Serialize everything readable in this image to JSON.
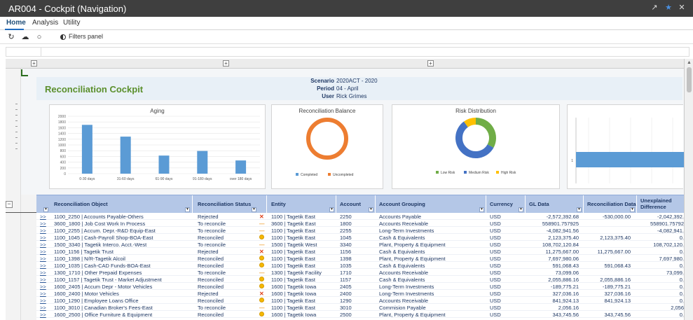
{
  "window": {
    "title": "AR004 - Cockpit (Navigation)"
  },
  "ribbon": {
    "tabs": [
      "Home",
      "Analysis",
      "Utility"
    ],
    "active_tab": "Home"
  },
  "toolbar": {
    "filters_label": "Filters panel"
  },
  "dashboard": {
    "title": "Reconciliation Cockpit",
    "meta": {
      "scenario_label": "Scenario",
      "scenario_value": "2020ACT - 2020",
      "period_label": "Period",
      "period_value": "04 - April",
      "user_label": "User",
      "user_value": "Rick Grimes"
    }
  },
  "chart_data": [
    {
      "type": "bar",
      "title": "Aging",
      "categories": [
        "0-30 days",
        "31-60 days",
        "61-90 days",
        "91-180 days",
        "over 180 days"
      ],
      "values": [
        1700,
        1290,
        630,
        790,
        460
      ],
      "ylim": [
        0,
        2000
      ],
      "yticks": [
        "0",
        "200",
        "400",
        "600",
        "800",
        "1000",
        "1200",
        "1400",
        "1600",
        "1800",
        "2000"
      ],
      "color": "#5b9bd5"
    },
    {
      "type": "pie",
      "title": "Reconciliation Balance",
      "labels": [
        "Completed",
        "Uncompleted"
      ],
      "values": [
        0,
        100
      ],
      "colors": [
        "#5b9bd5",
        "#ed7d31"
      ]
    },
    {
      "type": "pie",
      "title": "Risk Distribution",
      "labels": [
        "Low Risk",
        "Medium Risk",
        "High Risk"
      ],
      "values": [
        33,
        57,
        10
      ],
      "colors": [
        "#70ad47",
        "#4472c4",
        "#ffc000"
      ]
    },
    {
      "type": "bar",
      "title": "",
      "categories": [
        "1"
      ],
      "values": [
        1
      ],
      "orientation": "horizontal",
      "color": "#5b9bd5"
    }
  ],
  "grid": {
    "columns": {
      "object": "Reconciliation Object",
      "status": "Reconciliation Status",
      "entity": "Entity",
      "account": "Account",
      "grouping": "Account Grouping",
      "currency": "Currency",
      "gl": "GL Data",
      "recdata": "Reconciliation Data",
      "unexplained": "Unexplained Difference"
    },
    "link_text": ">>",
    "rows": [
      {
        "object": "1100_2250 | Accounts Payable-Others",
        "status": "Rejected",
        "icon": "x",
        "entity": "1100 | Tagetik East",
        "account": "2250",
        "grouping": "Accounts Payable",
        "currency": "USD",
        "gl": "-2,572,392.68",
        "recdata": "-530,000.00",
        "unexplained": "-2,042,392."
      },
      {
        "object": "3600_1800 | Job Cost Work In Process",
        "status": "To reconcile",
        "icon": "dash",
        "entity": "3600 | Tagetik East",
        "account": "1800",
        "grouping": "Accounts Receivable",
        "currency": "USD",
        "gl": "558901.757925",
        "recdata": "",
        "unexplained": "558901.75792"
      },
      {
        "object": "1100_2255 | Accum. Depr.-R&D Equip-East",
        "status": "To reconcile",
        "icon": "dash",
        "entity": "1100 | Tagetik East",
        "account": "2255",
        "grouping": "Long-Term Investments",
        "currency": "USD",
        "gl": "-4,082,941.56",
        "recdata": "",
        "unexplained": "-4,082,941."
      },
      {
        "object": "1100_1045 | Cash-Payroll Shop-BOA-East",
        "status": "Reconciled",
        "icon": "dot",
        "entity": "1100 | Tagetik East",
        "account": "1045",
        "grouping": "Cash & Equivalents",
        "currency": "USD",
        "gl": "2,123,375.40",
        "recdata": "2,123,375.40",
        "unexplained": "0."
      },
      {
        "object": "1500_3340 | Tagetik Interco. Acct.-West",
        "status": "To reconcile",
        "icon": "dash",
        "entity": "1500 | Tagetik West",
        "account": "3340",
        "grouping": "Plant, Property & Equipment",
        "currency": "USD",
        "gl": "108,702,120.84",
        "recdata": "",
        "unexplained": "108,702,120."
      },
      {
        "object": "1100_1156 | Tagetik Trust",
        "status": "Rejected",
        "icon": "x",
        "entity": "1100 | Tagetik East",
        "account": "1156",
        "grouping": "Cash & Equivalents",
        "currency": "USD",
        "gl": "11,275,667.00",
        "recdata": "11,275,667.00",
        "unexplained": "0."
      },
      {
        "object": "1100_1398 | N/R-Tagetik Alcoil",
        "status": "Reconciled",
        "icon": "dot",
        "entity": "1100 | Tagetik East",
        "account": "1398",
        "grouping": "Plant, Property & Equipment",
        "currency": "USD",
        "gl": "7,697,980.06",
        "recdata": "",
        "unexplained": "7,697,980."
      },
      {
        "object": "1100_1035 | Cash-CAD Funds-BOA-East",
        "status": "Reconciled",
        "icon": "dot",
        "entity": "1100 | Tagetik East",
        "account": "1035",
        "grouping": "Cash & Equivalents",
        "currency": "USD",
        "gl": "591,068.43",
        "recdata": "591,068.43",
        "unexplained": "0."
      },
      {
        "object": "1300_1710 | Other Prepaid Expenses",
        "status": "To reconcile",
        "icon": "dash",
        "entity": "1300 | Tagetik Facility",
        "account": "1710",
        "grouping": "Accounts Receivable",
        "currency": "USD",
        "gl": "73,099.06",
        "recdata": "",
        "unexplained": "73,099."
      },
      {
        "object": "1100_1157 | Tagetik Trust - Market Adjustment",
        "status": "Reconciled",
        "icon": "dot",
        "entity": "1100 | Tagetik East",
        "account": "1157",
        "grouping": "Cash & Equivalents",
        "currency": "USD",
        "gl": "2,055,886.16",
        "recdata": "2,055,886.16",
        "unexplained": "0."
      },
      {
        "object": "1600_2405 | Accum Depr - Motor Vehicles",
        "status": "Reconciled",
        "icon": "dot",
        "entity": "1600 | Tagetik Iowa",
        "account": "2405",
        "grouping": "Long-Term Investments",
        "currency": "USD",
        "gl": "-189,775.21",
        "recdata": "-189,775.21",
        "unexplained": "0."
      },
      {
        "object": "1600_2400 | Motor Vehicles",
        "status": "Rejected",
        "icon": "x",
        "entity": "1600 | Tagetik Iowa",
        "account": "2400",
        "grouping": "Long-Term Investments",
        "currency": "USD",
        "gl": "327,036.16",
        "recdata": "327,036.16",
        "unexplained": "0."
      },
      {
        "object": "1100_1290 | Employee Loans Office",
        "status": "Reconciled",
        "icon": "dot",
        "entity": "1100 | Tagetik East",
        "account": "1290",
        "grouping": "Accounts Receivable",
        "currency": "USD",
        "gl": "841,924.13",
        "recdata": "841,924.13",
        "unexplained": "0."
      },
      {
        "object": "1100_3010 | Canadian Broker's Fees-East",
        "status": "To reconcile",
        "icon": "dash",
        "entity": "1100 | Tagetik East",
        "account": "3010",
        "grouping": "Commision Payable",
        "currency": "USD",
        "gl": "2,056.16",
        "recdata": "",
        "unexplained": "2,056"
      },
      {
        "object": "1600_2500 | Office Furniture & Equipment",
        "status": "Reconciled",
        "icon": "dot",
        "entity": "1600 | Tagetik Iowa",
        "account": "2500",
        "grouping": "Plant, Property & Equipment",
        "currency": "USD",
        "gl": "343,745.56",
        "recdata": "343,745.56",
        "unexplained": "0."
      }
    ]
  }
}
